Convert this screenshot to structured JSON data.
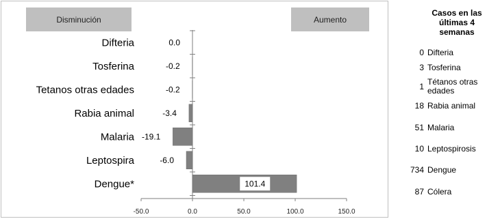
{
  "chart_data": {
    "type": "bar",
    "orientation": "horizontal",
    "categories": [
      "Difteria",
      "Tosferina",
      "Tetanos otras edades",
      "Rabia animal",
      "Malaria",
      "Leptospira",
      "Dengue*"
    ],
    "values": [
      0.0,
      -0.2,
      -0.2,
      -3.4,
      -19.1,
      -6.0,
      101.4
    ],
    "data_labels": [
      "0.0",
      "-0.2",
      "-0.2",
      "-3.4",
      "-19.1",
      "-6.0",
      "101.4"
    ],
    "xlim": [
      -50,
      150
    ],
    "x_ticks": [
      "-50.0",
      "0.0",
      "50.0",
      "100.0",
      "150.0"
    ],
    "bar_color": "#808080",
    "header_left": "Disminución",
    "header_right": "Aumento"
  },
  "side_table": {
    "title": "Casos en las últimas 4 semanas",
    "rows": [
      {
        "count": "0",
        "name": "Difteria"
      },
      {
        "count": "3",
        "name": "Tosferina"
      },
      {
        "count": "1",
        "name": "Tétanos otras edades"
      },
      {
        "count": "18",
        "name": "Rabia animal"
      },
      {
        "count": "51",
        "name": "Malaria"
      },
      {
        "count": "10",
        "name": "Leptospirosis"
      },
      {
        "count": "734",
        "name": "Dengue"
      },
      {
        "count": "87",
        "name": "Cólera"
      }
    ]
  },
  "colors": {
    "header_fill": "#bfbfbf",
    "bar": "#808080",
    "axis": "#7f7f7f"
  }
}
